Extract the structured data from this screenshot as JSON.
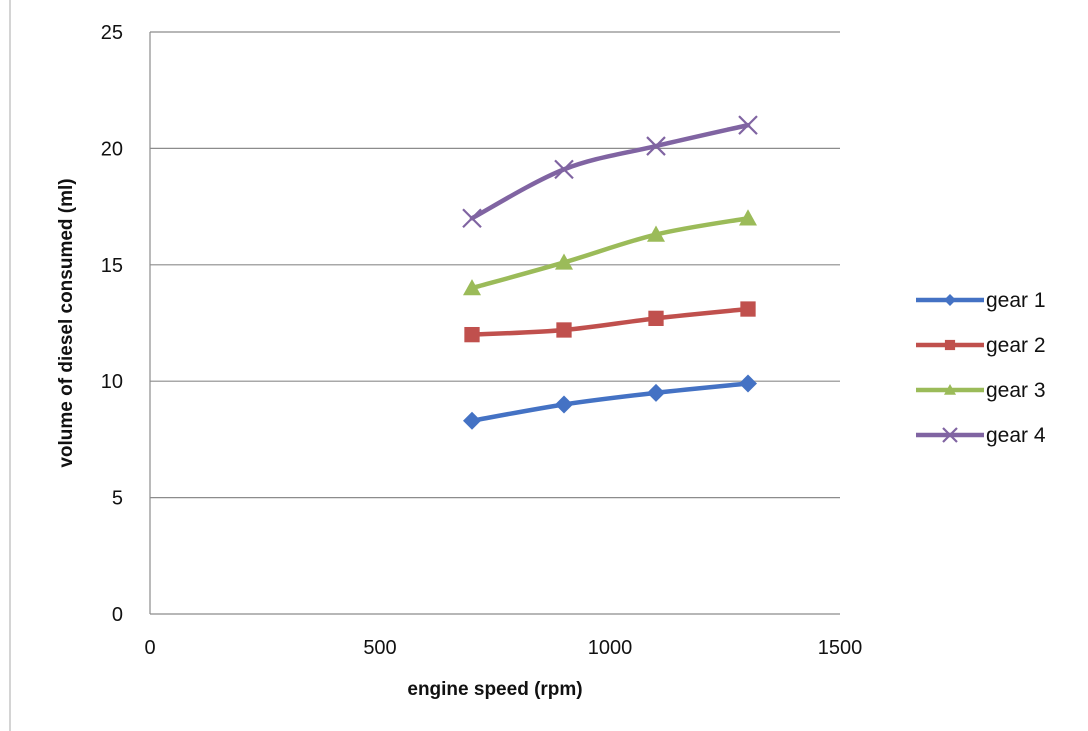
{
  "chart_data": {
    "type": "line",
    "title": "",
    "xlabel": "engine speed (rpm)",
    "ylabel": "volume of diesel consumed (ml)",
    "xlim": [
      0,
      1500
    ],
    "ylim": [
      0,
      25
    ],
    "xticks": [
      0,
      500,
      1000,
      1500
    ],
    "yticks": [
      0,
      5,
      10,
      15,
      20,
      25
    ],
    "grid": "horizontal",
    "legend_position": "right",
    "x": [
      700,
      900,
      1100,
      1300
    ],
    "series": [
      {
        "name": "gear 1",
        "color": "#4472C4",
        "marker": "diamond",
        "values": [
          8.3,
          9.0,
          9.5,
          9.9
        ]
      },
      {
        "name": "gear 2",
        "color": "#C0504D",
        "marker": "square",
        "values": [
          12.0,
          12.2,
          12.7,
          13.1
        ]
      },
      {
        "name": "gear 3",
        "color": "#9BBB59",
        "marker": "triangle",
        "values": [
          14.0,
          15.1,
          16.3,
          17.0
        ]
      },
      {
        "name": "gear 4",
        "color": "#8064A2",
        "marker": "x",
        "values": [
          17.0,
          19.1,
          20.1,
          21.0
        ]
      }
    ]
  }
}
